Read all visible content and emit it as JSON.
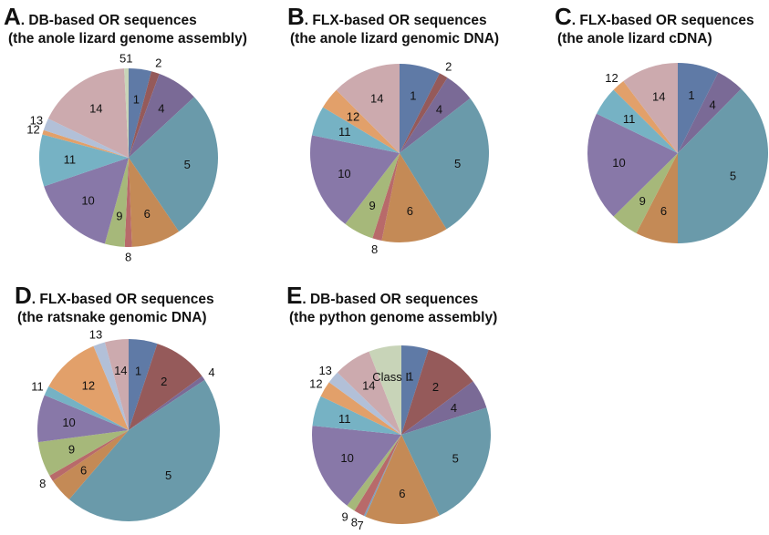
{
  "colors": {
    "1": "#5f7aa6",
    "2": "#955a5a",
    "4": "#7a6a96",
    "5": "#6a9aaa",
    "6": "#c48a56",
    "7": "#7aa0c0",
    "8": "#b86a6a",
    "9": "#a6b87a",
    "10": "#8878a8",
    "11": "#76b2c4",
    "12": "#e2a06a",
    "13": "#b2c0d8",
    "14": "#ccaaae",
    "51": "#c8d4b8",
    "Class I": "#c8d4b8"
  },
  "chart_data": [
    {
      "type": "pie",
      "panel": "A",
      "title": ". DB-based OR sequences",
      "subtitle": "(the anole lizard genome assembly)",
      "categories": [
        "1",
        "2",
        "4",
        "5",
        "6",
        "8",
        "9",
        "10",
        "11",
        "12",
        "13",
        "14",
        "51"
      ],
      "values": [
        4.1,
        1.5,
        7.5,
        27.4,
        8.9,
        1.3,
        3.6,
        15.5,
        9.4,
        0.8,
        2.2,
        17.0,
        0.8
      ]
    },
    {
      "type": "pie",
      "panel": "B",
      "title": ". FLX-based OR sequences",
      "subtitle": "(the anole lizard genomic DNA)",
      "categories": [
        "1",
        "2",
        "4",
        "5",
        "6",
        "8",
        "9",
        "10",
        "11",
        "12",
        "14"
      ],
      "values": [
        7.4,
        1.6,
        5.5,
        26.7,
        12.0,
        1.7,
        5.5,
        17.8,
        5.4,
        3.9,
        12.5
      ]
    },
    {
      "type": "pie",
      "panel": "C",
      "title": ". FLX-based OR sequences",
      "subtitle": "(the anole lizard cDNA)",
      "categories": [
        "1",
        "4",
        "5",
        "6",
        "9",
        "10",
        "11",
        "12",
        "14"
      ],
      "values": [
        7.4,
        5.0,
        37.6,
        7.6,
        5.0,
        19.6,
        5.2,
        2.3,
        10.3
      ]
    },
    {
      "type": "pie",
      "panel": "D",
      "title": ". FLX-based OR sequences",
      "subtitle": "(the ratsnake genomic DNA)",
      "categories": [
        "1",
        "2",
        "4",
        "5",
        "6",
        "8",
        "9",
        "10",
        "11",
        "12",
        "13",
        "14"
      ],
      "values": [
        5.1,
        9.8,
        0.8,
        45.6,
        4.3,
        1.1,
        6.2,
        8.4,
        1.7,
        10.7,
        2.1,
        4.2
      ]
    },
    {
      "type": "pie",
      "panel": "E",
      "title": ". DB-based OR sequences",
      "subtitle": "(the python genome assembly)",
      "categories": [
        "1",
        "2",
        "4",
        "5",
        "6",
        "7",
        "8",
        "9",
        "10",
        "11",
        "12",
        "13",
        "14",
        "Class I"
      ],
      "values": [
        4.9,
        9.9,
        5.3,
        22.9,
        13.6,
        0.3,
        1.9,
        1.6,
        16.2,
        5.5,
        2.9,
        2.3,
        6.8,
        5.9
      ]
    }
  ]
}
